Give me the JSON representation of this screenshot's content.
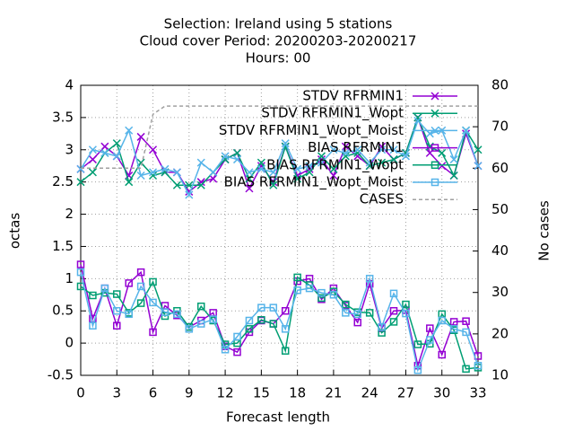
{
  "chart_data": {
    "type": "line",
    "title": [
      "Selection: Ireland using      5 stations",
      "Cloud cover   Period: 20200203-20200217",
      "Hours:  00"
    ],
    "x_label": "Forecast length",
    "y_label": "octas",
    "y2_label": "No cases",
    "x": [
      0,
      1,
      2,
      3,
      4,
      5,
      6,
      7,
      8,
      9,
      10,
      11,
      12,
      13,
      14,
      15,
      16,
      17,
      18,
      19,
      20,
      21,
      22,
      23,
      24,
      25,
      26,
      27,
      28,
      29,
      30,
      31,
      32,
      33
    ],
    "xlim": [
      0,
      33
    ],
    "xticks": [
      0,
      3,
      6,
      9,
      12,
      15,
      18,
      21,
      24,
      27,
      30,
      33
    ],
    "ylim": [
      -0.5,
      4
    ],
    "yticks": [
      -0.5,
      0,
      0.5,
      1,
      1.5,
      2,
      2.5,
      3,
      3.5,
      4
    ],
    "y2lim": [
      10,
      80
    ],
    "y2ticks": [
      10,
      20,
      30,
      40,
      50,
      60,
      70,
      80
    ],
    "grid": true,
    "legend": "top-right",
    "series": [
      {
        "name": "STDV RFRMIN1",
        "color": "#9400d3",
        "marker": "x",
        "values": [
          2.7,
          2.85,
          3.05,
          2.9,
          2.6,
          3.2,
          3.0,
          2.65,
          2.65,
          2.35,
          2.5,
          2.55,
          2.85,
          2.95,
          2.4,
          2.75,
          2.5,
          3.05,
          2.6,
          2.7,
          2.85,
          2.6,
          3.05,
          2.9,
          2.75,
          3.05,
          2.85,
          2.95,
          3.5,
          2.95,
          2.75,
          2.6,
          3.25,
          2.75
        ]
      },
      {
        "name": "STDV RFRMIN1_Wopt",
        "color": "#009e73",
        "marker": "x",
        "values": [
          2.5,
          2.65,
          2.95,
          3.1,
          2.5,
          2.8,
          2.6,
          2.65,
          2.45,
          2.45,
          2.45,
          2.65,
          2.85,
          2.95,
          2.55,
          2.8,
          2.45,
          3.05,
          2.55,
          2.65,
          2.9,
          2.7,
          2.9,
          2.95,
          2.75,
          2.8,
          2.85,
          2.95,
          3.5,
          3.05,
          2.95,
          2.6,
          3.3,
          3.0
        ]
      },
      {
        "name": "STDV RFRMIN1_Wopt_Moist",
        "color": "#56b4e9",
        "marker": "x",
        "values": [
          2.7,
          3.0,
          2.95,
          2.9,
          3.3,
          2.6,
          2.65,
          2.7,
          2.65,
          2.3,
          2.8,
          2.65,
          2.9,
          2.85,
          2.65,
          2.7,
          2.65,
          3.1,
          2.7,
          2.75,
          2.8,
          3.0,
          2.95,
          3.0,
          2.8,
          3.0,
          3.0,
          2.9,
          3.45,
          3.25,
          3.3,
          2.85,
          3.3,
          2.75
        ]
      },
      {
        "name": "BIAS RFRMIN1",
        "color": "#9400d3",
        "marker": "square",
        "values": [
          1.22,
          0.38,
          0.85,
          0.27,
          0.93,
          1.1,
          0.17,
          0.58,
          0.43,
          0.25,
          0.35,
          0.47,
          -0.05,
          -0.14,
          0.17,
          0.35,
          0.3,
          0.5,
          0.96,
          1.0,
          0.68,
          0.85,
          0.58,
          0.32,
          0.92,
          0.23,
          0.5,
          0.51,
          -0.35,
          0.23,
          -0.18,
          0.33,
          0.34,
          -0.2
        ]
      },
      {
        "name": "BIAS RFRMIN1_Wopt",
        "color": "#009e73",
        "marker": "square",
        "values": [
          0.88,
          0.74,
          0.78,
          0.76,
          0.47,
          0.62,
          0.95,
          0.42,
          0.5,
          0.25,
          0.57,
          0.35,
          -0.02,
          0.0,
          0.22,
          0.36,
          0.3,
          -0.12,
          1.02,
          0.9,
          0.7,
          0.8,
          0.6,
          0.48,
          0.47,
          0.16,
          0.33,
          0.6,
          -0.02,
          -0.01,
          0.45,
          0.2,
          -0.4,
          -0.38
        ]
      },
      {
        "name": "BIAS RFRMIN1_Wopt_Moist",
        "color": "#56b4e9",
        "marker": "square",
        "values": [
          1.1,
          0.27,
          0.85,
          0.5,
          0.45,
          0.88,
          0.63,
          0.48,
          0.45,
          0.22,
          0.3,
          0.37,
          -0.1,
          0.1,
          0.35,
          0.55,
          0.55,
          0.22,
          0.82,
          0.85,
          0.78,
          0.75,
          0.47,
          0.45,
          1.0,
          0.25,
          0.77,
          0.46,
          -0.42,
          0.05,
          0.35,
          0.22,
          0.17,
          -0.35
        ]
      },
      {
        "name": "CASES",
        "color": "#a0a0a0",
        "axis": "y2",
        "dashed": true,
        "values": [
          60,
          60,
          60,
          60,
          60,
          60,
          73,
          75,
          75,
          75,
          75,
          75,
          75,
          75,
          75,
          75,
          75,
          75,
          75,
          75,
          75,
          75,
          75,
          75,
          75,
          75,
          75,
          75,
          75,
          75,
          75,
          75,
          75,
          75
        ]
      }
    ]
  }
}
